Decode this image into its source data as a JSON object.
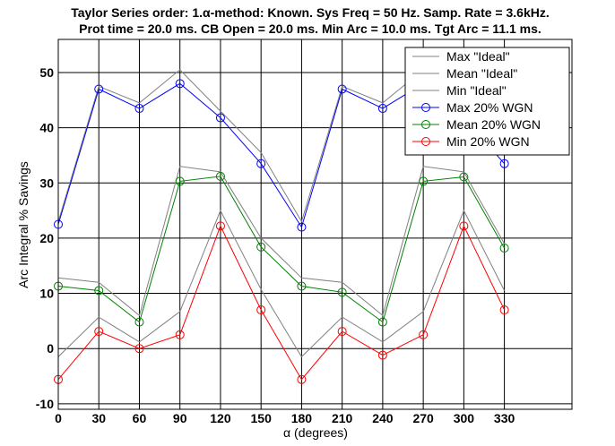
{
  "chart_data": {
    "type": "line",
    "title": "Taylor Series order: 1.α-method: Known. Sys Freq = 50 Hz. Samp. Rate = 3.6kHz.",
    "subtitle": "Prot time = 20.0 ms. CB Open = 20.0 ms. Min Arc = 10.0 ms. Tgt Arc = 11.1 ms.",
    "xlabel": "α (degrees)",
    "ylabel": "Arc Integral % Savings",
    "xlim": [
      0,
      380
    ],
    "ylim": [
      -11,
      56
    ],
    "x_ticks": [
      0,
      30,
      60,
      90,
      120,
      150,
      180,
      210,
      240,
      270,
      300,
      330
    ],
    "y_ticks": [
      -10,
      0,
      10,
      20,
      30,
      40,
      50
    ],
    "grid": true,
    "legend_position": "top-right",
    "x": [
      0,
      30,
      60,
      90,
      120,
      150,
      180,
      210,
      240,
      270,
      300,
      330
    ],
    "series": [
      {
        "name": "Max \"Ideal\"",
        "color": "#808080",
        "marker": "none",
        "values": [
          23,
          47.5,
          44.5,
          50.5,
          43,
          35.5,
          23,
          47.5,
          44.5,
          50.5,
          43,
          35
        ]
      },
      {
        "name": "Mean \"Ideal\"",
        "color": "#808080",
        "marker": "none",
        "values": [
          12.8,
          12,
          6,
          33,
          32,
          20,
          12.8,
          12,
          6,
          33,
          32,
          19
        ]
      },
      {
        "name": "Min \"Ideal\"",
        "color": "#808080",
        "marker": "none",
        "values": [
          -1.5,
          5.7,
          1.2,
          6.7,
          25,
          10.7,
          -1.5,
          5.7,
          1.2,
          6.7,
          25,
          10.5
        ]
      },
      {
        "name": "Max 20% WGN",
        "color": "#0000ff",
        "marker": "circle",
        "values": [
          22.5,
          47,
          43.5,
          48,
          41.8,
          33.5,
          22,
          47,
          43.5,
          48,
          41.8,
          33.5
        ]
      },
      {
        "name": "Mean 20% WGN",
        "color": "#008000",
        "marker": "circle",
        "values": [
          11.3,
          10.5,
          4.8,
          30.3,
          31.2,
          18.4,
          11.3,
          10.2,
          4.8,
          30.3,
          31.1,
          18.2
        ]
      },
      {
        "name": "Min 20% WGN",
        "color": "#ff0000",
        "marker": "circle",
        "values": [
          -5.6,
          3.1,
          0,
          2.5,
          22.2,
          7,
          -5.6,
          3.1,
          -1.2,
          2.5,
          22.2,
          7
        ]
      }
    ]
  }
}
